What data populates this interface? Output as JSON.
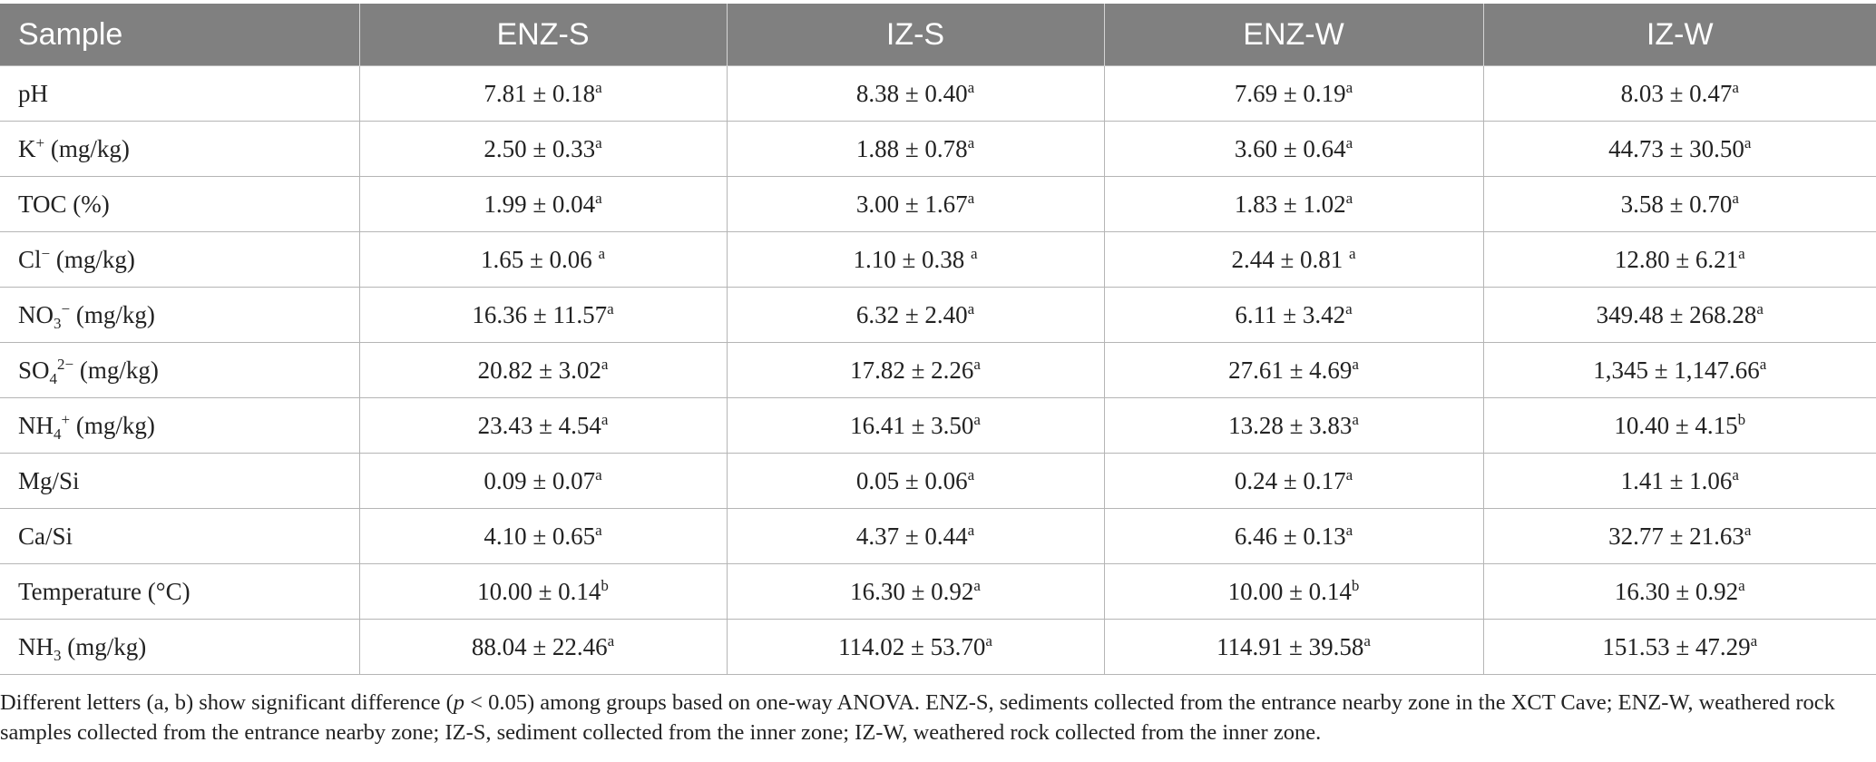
{
  "table": {
    "headers": [
      "Sample",
      "ENZ-S",
      "IZ-S",
      "ENZ-W",
      "IZ-W"
    ],
    "rows": [
      {
        "label": {
          "main": "pH",
          "sub": "",
          "sup": "",
          "suffix": ""
        },
        "cells": [
          {
            "value": "7.81 ± 0.18",
            "sup": "a"
          },
          {
            "value": "8.38 ± 0.40",
            "sup": "a"
          },
          {
            "value": "7.69 ± 0.19",
            "sup": "a"
          },
          {
            "value": "8.03 ± 0.47",
            "sup": "a"
          }
        ]
      },
      {
        "label": {
          "main": "K",
          "sub": "",
          "sup": "+",
          "suffix": " (mg/kg)"
        },
        "cells": [
          {
            "value": "2.50 ± 0.33",
            "sup": "a"
          },
          {
            "value": "1.88 ± 0.78",
            "sup": "a"
          },
          {
            "value": "3.60 ± 0.64",
            "sup": "a"
          },
          {
            "value": "44.73 ± 30.50",
            "sup": "a"
          }
        ]
      },
      {
        "label": {
          "main": "TOC (%)",
          "sub": "",
          "sup": "",
          "suffix": ""
        },
        "cells": [
          {
            "value": "1.99 ± 0.04",
            "sup": "a"
          },
          {
            "value": "3.00 ± 1.67",
            "sup": "a"
          },
          {
            "value": "1.83 ± 1.02",
            "sup": "a"
          },
          {
            "value": "3.58 ± 0.70",
            "sup": "a"
          }
        ]
      },
      {
        "label": {
          "main": "Cl",
          "sub": "",
          "sup": "−",
          "suffix": " (mg/kg)"
        },
        "cells": [
          {
            "value": "1.65 ± 0.06 ",
            "sup": "a"
          },
          {
            "value": "1.10 ± 0.38 ",
            "sup": "a"
          },
          {
            "value": "2.44 ± 0.81 ",
            "sup": "a"
          },
          {
            "value": "12.80 ± 6.21",
            "sup": "a"
          }
        ]
      },
      {
        "label": {
          "main": "NO",
          "sub": "3",
          "sup": "−",
          "suffix": " (mg/kg)"
        },
        "cells": [
          {
            "value": "16.36 ± 11.57",
            "sup": "a"
          },
          {
            "value": "6.32 ± 2.40",
            "sup": "a"
          },
          {
            "value": "6.11 ± 3.42",
            "sup": "a"
          },
          {
            "value": "349.48 ± 268.28",
            "sup": "a"
          }
        ]
      },
      {
        "label": {
          "main": "SO",
          "sub": "4",
          "sup": "2−",
          "suffix": " (mg/kg)"
        },
        "cells": [
          {
            "value": "20.82 ± 3.02",
            "sup": "a"
          },
          {
            "value": "17.82 ± 2.26",
            "sup": "a"
          },
          {
            "value": "27.61 ± 4.69",
            "sup": "a"
          },
          {
            "value": "1,345 ± 1,147.66",
            "sup": "a"
          }
        ]
      },
      {
        "label": {
          "main": "NH",
          "sub": "4",
          "sup": "+",
          "suffix": " (mg/kg)"
        },
        "cells": [
          {
            "value": "23.43 ± 4.54",
            "sup": "a"
          },
          {
            "value": "16.41 ± 3.50",
            "sup": "a"
          },
          {
            "value": "13.28 ± 3.83",
            "sup": "a"
          },
          {
            "value": "10.40 ± 4.15",
            "sup": "b"
          }
        ]
      },
      {
        "label": {
          "main": "Mg/Si",
          "sub": "",
          "sup": "",
          "suffix": ""
        },
        "cells": [
          {
            "value": "0.09 ± 0.07",
            "sup": "a"
          },
          {
            "value": "0.05 ± 0.06",
            "sup": "a"
          },
          {
            "value": "0.24 ± 0.17",
            "sup": "a"
          },
          {
            "value": "1.41 ± 1.06",
            "sup": "a"
          }
        ]
      },
      {
        "label": {
          "main": "Ca/Si",
          "sub": "",
          "sup": "",
          "suffix": ""
        },
        "cells": [
          {
            "value": "4.10 ± 0.65",
            "sup": "a"
          },
          {
            "value": "4.37 ± 0.44",
            "sup": "a"
          },
          {
            "value": "6.46 ± 0.13",
            "sup": "a"
          },
          {
            "value": "32.77 ± 21.63",
            "sup": "a"
          }
        ]
      },
      {
        "label": {
          "main": "Temperature (°C)",
          "sub": "",
          "sup": "",
          "suffix": ""
        },
        "cells": [
          {
            "value": "10.00 ± 0.14",
            "sup": "b"
          },
          {
            "value": "16.30 ± 0.92",
            "sup": "a"
          },
          {
            "value": "10.00 ± 0.14",
            "sup": "b"
          },
          {
            "value": "16.30 ± 0.92",
            "sup": "a"
          }
        ]
      },
      {
        "label": {
          "main": "NH",
          "sub": "3",
          "sup": "",
          "suffix": " (mg/kg)"
        },
        "cells": [
          {
            "value": "88.04 ± 22.46",
            "sup": "a"
          },
          {
            "value": "114.02 ± 53.70",
            "sup": "a"
          },
          {
            "value": "114.91 ± 39.58",
            "sup": "a"
          },
          {
            "value": "151.53 ± 47.29",
            "sup": "a"
          }
        ]
      }
    ]
  },
  "footnote": {
    "part1": "Different letters (a, b) show significant difference (",
    "italic": "p",
    "part2": " < 0.05) among groups based on one-way ANOVA. ENZ-S, sediments collected from the entrance nearby zone in the XCT Cave; ENZ-W, weathered rock samples collected from the entrance nearby zone; IZ-S, sediment collected from the inner zone; IZ-W, weathered rock collected from the inner zone."
  }
}
